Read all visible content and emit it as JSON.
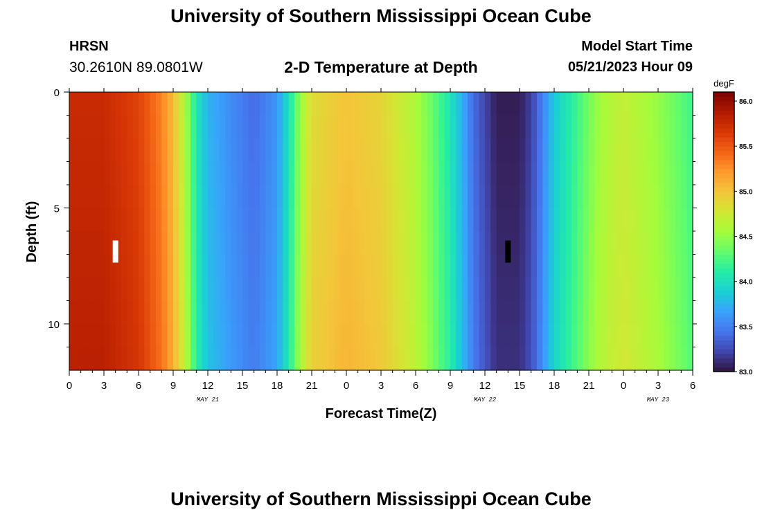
{
  "header": {
    "title": "University of Southern Mississippi Ocean Cube",
    "station": "HRSN",
    "coordinates": "30.2610N  89.0801W",
    "subtitle": "2-D Temperature at Depth",
    "model_start_label": "Model Start Time",
    "model_start_time": "05/21/2023 Hour 09"
  },
  "footer": {
    "title": "University of Southern Mississippi Ocean Cube"
  },
  "chart_data": {
    "type": "heatmap",
    "title": "2-D Temperature at Depth",
    "xlabel": "Forecast Time(Z)",
    "ylabel": "Depth (ft)",
    "x_tick_labels": [
      "0",
      "3",
      "6",
      "9",
      "12",
      "15",
      "18",
      "21",
      "0",
      "3",
      "6",
      "9",
      "12",
      "15",
      "18",
      "21",
      "0",
      "3",
      "6"
    ],
    "x_date_labels": [
      {
        "label": "MAY 21",
        "tick_index": 4
      },
      {
        "label": "MAY 22",
        "tick_index": 12
      },
      {
        "label": "MAY 23",
        "tick_index": 17
      }
    ],
    "y_ticks": [
      0,
      5,
      10
    ],
    "ylim": [
      0,
      12
    ],
    "y_inverted": true,
    "forecast_hours_range": [
      0,
      54
    ],
    "colorbar": {
      "unit": "degF",
      "range": [
        83.0,
        86.1
      ],
      "ticks": [
        83.0,
        83.5,
        84.0,
        84.5,
        85.0,
        85.5,
        86.0
      ],
      "colors": [
        "#30123b",
        "#4145ab",
        "#4675ed",
        "#39a2fc",
        "#1bcfd4",
        "#24eca6",
        "#61fc6c",
        "#a4fc3b",
        "#d1e834",
        "#f3c63a",
        "#fe9b2d",
        "#f36315",
        "#d93806",
        "#b11901",
        "#7a0402"
      ]
    },
    "surface_temperature_by_hour": [
      {
        "hour": 0,
        "temp": 85.75
      },
      {
        "hour": 3,
        "temp": 85.75
      },
      {
        "hour": 6,
        "temp": 85.6
      },
      {
        "hour": 8,
        "temp": 85.3
      },
      {
        "hour": 9,
        "temp": 85.05
      },
      {
        "hour": 10,
        "temp": 84.6
      },
      {
        "hour": 11,
        "temp": 84.05
      },
      {
        "hour": 12,
        "temp": 83.75
      },
      {
        "hour": 14,
        "temp": 83.55
      },
      {
        "hour": 16,
        "temp": 83.4
      },
      {
        "hour": 18,
        "temp": 83.6
      },
      {
        "hour": 19,
        "temp": 84.0
      },
      {
        "hour": 20,
        "temp": 84.5
      },
      {
        "hour": 21,
        "temp": 84.85
      },
      {
        "hour": 24,
        "temp": 85.0
      },
      {
        "hour": 27,
        "temp": 84.9
      },
      {
        "hour": 30,
        "temp": 84.6
      },
      {
        "hour": 33,
        "temp": 84.05
      },
      {
        "hour": 35,
        "temp": 83.4
      },
      {
        "hour": 37,
        "temp": 83.05
      },
      {
        "hour": 39,
        "temp": 83.05
      },
      {
        "hour": 40,
        "temp": 83.2
      },
      {
        "hour": 41,
        "temp": 83.5
      },
      {
        "hour": 42,
        "temp": 83.85
      },
      {
        "hour": 44,
        "temp": 84.2
      },
      {
        "hour": 46,
        "temp": 84.55
      },
      {
        "hour": 48,
        "temp": 84.7
      },
      {
        "hour": 51,
        "temp": 84.5
      },
      {
        "hour": 54,
        "temp": 84.2
      }
    ],
    "markers": [
      {
        "hour": 4,
        "depth": 7,
        "color": "#ffffff"
      },
      {
        "hour": 38,
        "depth": 7,
        "color": "#000000"
      }
    ]
  }
}
